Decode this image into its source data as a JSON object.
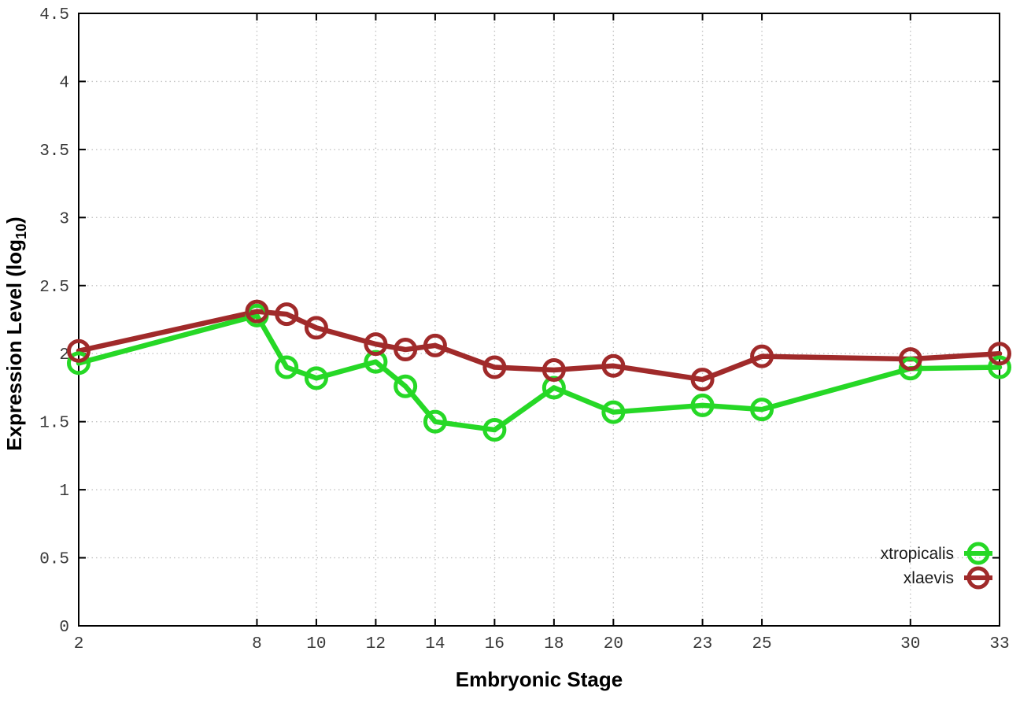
{
  "page": {
    "background_color": "#ffffff",
    "border_color": "#000000",
    "grid_color": "#c3c3c3",
    "tick_label_color": "#383838"
  },
  "chart_data": {
    "type": "line",
    "title": "",
    "xlabel": "Embryonic Stage",
    "ylabel": {
      "pre": "Expression Level (log",
      "sub": "10",
      "post": ")"
    },
    "ylabel_full": "Expression Level (log10)",
    "xlim": [
      2,
      33
    ],
    "ylim": [
      0,
      4.5
    ],
    "grid": true,
    "legend_position": "bottom-right",
    "xticks": [
      {
        "value": 2,
        "label": "2"
      },
      {
        "value": 8,
        "label": "8"
      },
      {
        "value": 10,
        "label": "10"
      },
      {
        "value": 12,
        "label": "12"
      },
      {
        "value": 14,
        "label": "14"
      },
      {
        "value": 16,
        "label": "16"
      },
      {
        "value": 18,
        "label": "18"
      },
      {
        "value": 20,
        "label": "20"
      },
      {
        "value": 23,
        "label": "23"
      },
      {
        "value": 25,
        "label": "25"
      },
      {
        "value": 30,
        "label": "30"
      },
      {
        "value": 33,
        "label": "33"
      }
    ],
    "yticks": [
      {
        "value": 0,
        "label": "0"
      },
      {
        "value": 0.5,
        "label": "0.5"
      },
      {
        "value": 1,
        "label": "1"
      },
      {
        "value": 1.5,
        "label": "1.5"
      },
      {
        "value": 2,
        "label": "2"
      },
      {
        "value": 2.5,
        "label": "2.5"
      },
      {
        "value": 3,
        "label": "3"
      },
      {
        "value": 3.5,
        "label": "3.5"
      },
      {
        "value": 4,
        "label": "4"
      },
      {
        "value": 4.5,
        "label": "4.5"
      }
    ],
    "x": [
      2,
      8,
      9,
      10,
      12,
      13,
      14,
      16,
      18,
      20,
      23,
      25,
      30,
      33
    ],
    "series": [
      {
        "name": "xtropicalis",
        "color": "#26d826",
        "values": [
          1.93,
          2.28,
          1.9,
          1.82,
          1.94,
          1.76,
          1.5,
          1.44,
          1.75,
          1.57,
          1.62,
          1.59,
          1.89,
          1.9
        ]
      },
      {
        "name": "xlaevis",
        "color": "#a02a2a",
        "values": [
          2.02,
          2.31,
          2.29,
          2.19,
          2.07,
          2.03,
          2.06,
          1.9,
          1.88,
          1.91,
          1.81,
          1.98,
          1.96,
          2.0
        ]
      }
    ]
  }
}
